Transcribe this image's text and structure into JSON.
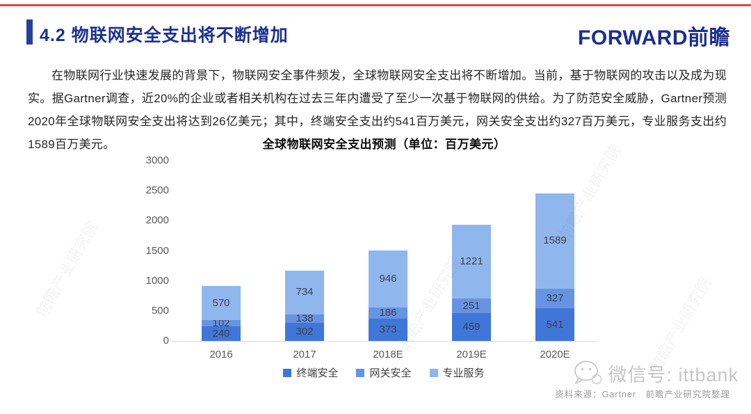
{
  "page": {
    "top_accent_color": "#e8443f"
  },
  "header": {
    "title": "4.2 物联网安全支出将不断增加",
    "logo_text": "FORWARD前瞻",
    "accent_color": "#25409c"
  },
  "body": {
    "paragraph": "在物联网行业快速发展的背景下，物联网安全事件频发，全球物联网安全支出将不断增加。当前，基于物联网的攻击以及成为现实。据Gartner调查，近20%的企业或者相关机构在过去三年内遭受了至少一次基于物联网的供给。为了防范安全威胁，Gartner预测2020年全球物联网安全支出将达到26亿美元；其中，终端安全支出约541百万美元，网关安全支出约327百万美元，专业服务支出约1589百万美元。"
  },
  "chart_data": {
    "type": "bar",
    "stacked": true,
    "title": "全球物联网安全支出预测（单位：百万美元）",
    "categories": [
      "2016",
      "2017",
      "2018E",
      "2019E",
      "2020E"
    ],
    "series": [
      {
        "name": "终端安全",
        "color": "#4176d9",
        "values": [
          240,
          302,
          373,
          459,
          541
        ]
      },
      {
        "name": "网关安全",
        "color": "#6794e2",
        "values": [
          102,
          138,
          186,
          251,
          327
        ]
      },
      {
        "name": "专业服务",
        "color": "#90b6ee",
        "values": [
          570,
          734,
          946,
          1221,
          1589
        ]
      }
    ],
    "ylim": [
      0,
      3000
    ],
    "ytick_step": 500,
    "grid": false,
    "legend_position": "bottom",
    "value_labels": true
  },
  "footer": {
    "wechat_label": "微信号: ittbank",
    "source": "资料来源：Gartner　前瞻产业研究院整理"
  },
  "watermark": {
    "text": "前瞻产业研究院"
  }
}
